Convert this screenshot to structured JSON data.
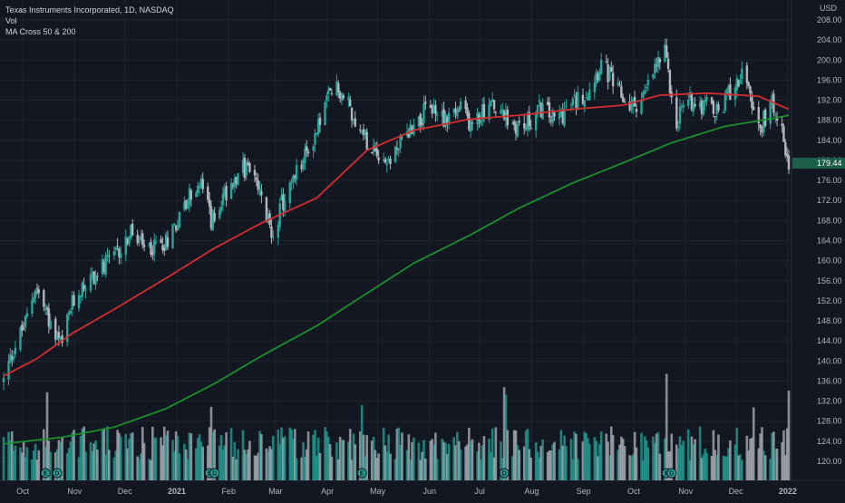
{
  "header": {
    "title": "Texas Instruments Incorporated, 1D, NASDAQ",
    "indicator_vol": "Vol",
    "indicator_ma": "MA Cross 50 & 200"
  },
  "colors": {
    "background": "#131722",
    "up": "#26a69a",
    "down": "#b2b5be",
    "vol_up": "#26a69a",
    "vol_down": "#b2b5be",
    "ma50": "#d32f2f",
    "ma200": "#1b8f2a",
    "grid": "#1f2430",
    "price_badge": "#1b5e4a"
  },
  "chart_data": {
    "type": "candlestick",
    "symbol": "Texas Instruments Incorporated",
    "interval": "1D",
    "exchange": "NASDAQ",
    "currency": "USD",
    "last_price": "179.44",
    "y_axis": {
      "range": [
        116,
        210
      ],
      "ticks": [
        "208.00",
        "204.00",
        "200.00",
        "196.00",
        "192.00",
        "188.00",
        "184.00",
        "180.00",
        "176.00",
        "172.00",
        "168.00",
        "164.00",
        "160.00",
        "156.00",
        "152.00",
        "148.00",
        "144.00",
        "140.00",
        "136.00",
        "132.00",
        "128.00",
        "124.00",
        "120.00"
      ]
    },
    "x_axis": {
      "labels": [
        "Oct",
        "Nov",
        "Dec",
        "2021",
        "Feb",
        "Mar",
        "Apr",
        "May",
        "Jun",
        "Jul",
        "Aug",
        "Sep",
        "Oct",
        "Nov",
        "Dec",
        "2022"
      ]
    },
    "price_path": [
      [
        "2020-09-25",
        136.0
      ],
      [
        "2020-10-01",
        142.5
      ],
      [
        "2020-10-08",
        147.5
      ],
      [
        "2020-10-14",
        155.0
      ],
      [
        "2020-10-20",
        150.0
      ],
      [
        "2020-10-26",
        144.5
      ],
      [
        "2020-10-30",
        143.0
      ],
      [
        "2020-11-04",
        150.5
      ],
      [
        "2020-11-10",
        154.5
      ],
      [
        "2020-11-20",
        157.5
      ],
      [
        "2020-12-01",
        161.0
      ],
      [
        "2020-12-10",
        165.5
      ],
      [
        "2020-12-18",
        162.0
      ],
      [
        "2020-12-31",
        164.0
      ],
      [
        "2021-01-08",
        169.0
      ],
      [
        "2021-01-15",
        173.5
      ],
      [
        "2021-01-22",
        175.0
      ],
      [
        "2021-01-27",
        168.0
      ],
      [
        "2021-02-05",
        174.0
      ],
      [
        "2021-02-12",
        178.0
      ],
      [
        "2021-02-19",
        178.5
      ],
      [
        "2021-02-26",
        172.0
      ],
      [
        "2021-03-04",
        165.5
      ],
      [
        "2021-03-10",
        171.0
      ],
      [
        "2021-03-17",
        176.0
      ],
      [
        "2021-03-24",
        180.5
      ],
      [
        "2021-03-31",
        186.0
      ],
      [
        "2021-04-06",
        192.0
      ],
      [
        "2021-04-12",
        194.5
      ],
      [
        "2021-04-20",
        190.5
      ],
      [
        "2021-04-27",
        185.0
      ],
      [
        "2021-05-05",
        183.0
      ],
      [
        "2021-05-12",
        179.5
      ],
      [
        "2021-05-20",
        183.5
      ],
      [
        "2021-05-28",
        187.5
      ],
      [
        "2021-06-07",
        190.5
      ],
      [
        "2021-06-15",
        188.5
      ],
      [
        "2021-06-25",
        190.0
      ],
      [
        "2021-07-02",
        187.0
      ],
      [
        "2021-07-12",
        191.5
      ],
      [
        "2021-07-22",
        188.0
      ],
      [
        "2021-08-02",
        186.5
      ],
      [
        "2021-08-12",
        190.5
      ],
      [
        "2021-08-20",
        188.0
      ],
      [
        "2021-08-30",
        191.0
      ],
      [
        "2021-09-09",
        194.0
      ],
      [
        "2021-09-17",
        199.5
      ],
      [
        "2021-09-27",
        193.5
      ],
      [
        "2021-10-05",
        190.5
      ],
      [
        "2021-10-13",
        193.0
      ],
      [
        "2021-10-20",
        199.0
      ],
      [
        "2021-10-25",
        201.0
      ],
      [
        "2021-11-01",
        188.0
      ],
      [
        "2021-11-08",
        192.5
      ],
      [
        "2021-11-18",
        191.0
      ],
      [
        "2021-11-26",
        189.0
      ],
      [
        "2021-12-03",
        194.0
      ],
      [
        "2021-12-10",
        197.5
      ],
      [
        "2021-12-20",
        186.0
      ],
      [
        "2021-12-28",
        191.5
      ],
      [
        "2022-01-03",
        188.5
      ],
      [
        "2022-01-05",
        183.0
      ],
      [
        "2022-01-07",
        179.44
      ]
    ],
    "ma50_path": [
      [
        "2020-09-25",
        137.0
      ],
      [
        "2020-10-15",
        140.5
      ],
      [
        "2020-11-05",
        145.5
      ],
      [
        "2020-12-01",
        150.5
      ],
      [
        "2020-12-31",
        156.5
      ],
      [
        "2021-01-29",
        162.5
      ],
      [
        "2021-02-26",
        167.5
      ],
      [
        "2021-03-31",
        172.5
      ],
      [
        "2021-04-30",
        182.0
      ],
      [
        "2021-05-28",
        186.0
      ],
      [
        "2021-06-30",
        188.2
      ],
      [
        "2021-07-30",
        189.0
      ],
      [
        "2021-08-31",
        190.2
      ],
      [
        "2021-09-30",
        191.0
      ],
      [
        "2021-10-22",
        193.0
      ],
      [
        "2021-11-19",
        193.4
      ],
      [
        "2021-12-20",
        192.8
      ],
      [
        "2022-01-07",
        190.2
      ]
    ],
    "ma200_path": [
      [
        "2020-09-25",
        123.5
      ],
      [
        "2020-10-30",
        124.8
      ],
      [
        "2020-11-30",
        126.8
      ],
      [
        "2020-12-31",
        130.5
      ],
      [
        "2021-01-29",
        135.5
      ],
      [
        "2021-02-26",
        141.0
      ],
      [
        "2021-03-31",
        147.0
      ],
      [
        "2021-04-30",
        153.5
      ],
      [
        "2021-05-28",
        159.5
      ],
      [
        "2021-06-30",
        165.0
      ],
      [
        "2021-07-30",
        170.5
      ],
      [
        "2021-08-31",
        175.5
      ],
      [
        "2021-09-30",
        179.5
      ],
      [
        "2021-10-29",
        183.5
      ],
      [
        "2021-11-30",
        186.8
      ],
      [
        "2021-12-31",
        188.5
      ],
      [
        "2022-01-07",
        189.0
      ]
    ],
    "volume_spikes": [
      [
        "2020-10-21",
        "high"
      ],
      [
        "2021-01-27",
        "high"
      ],
      [
        "2021-04-27",
        "high"
      ],
      [
        "2021-07-21",
        "high"
      ],
      [
        "2021-07-22",
        "high"
      ],
      [
        "2021-10-26",
        "high"
      ],
      [
        "2021-12-17",
        "high"
      ],
      [
        "2022-01-07",
        "high"
      ]
    ],
    "earnings_markers": [
      "2020-10-20",
      "2020-10-27",
      "2021-01-26",
      "2021-01-29",
      "2021-04-27",
      "2021-07-21",
      "2021-10-26",
      "2021-10-29"
    ],
    "earnings_marker_label": "E",
    "dividend_marker_label": "D"
  }
}
